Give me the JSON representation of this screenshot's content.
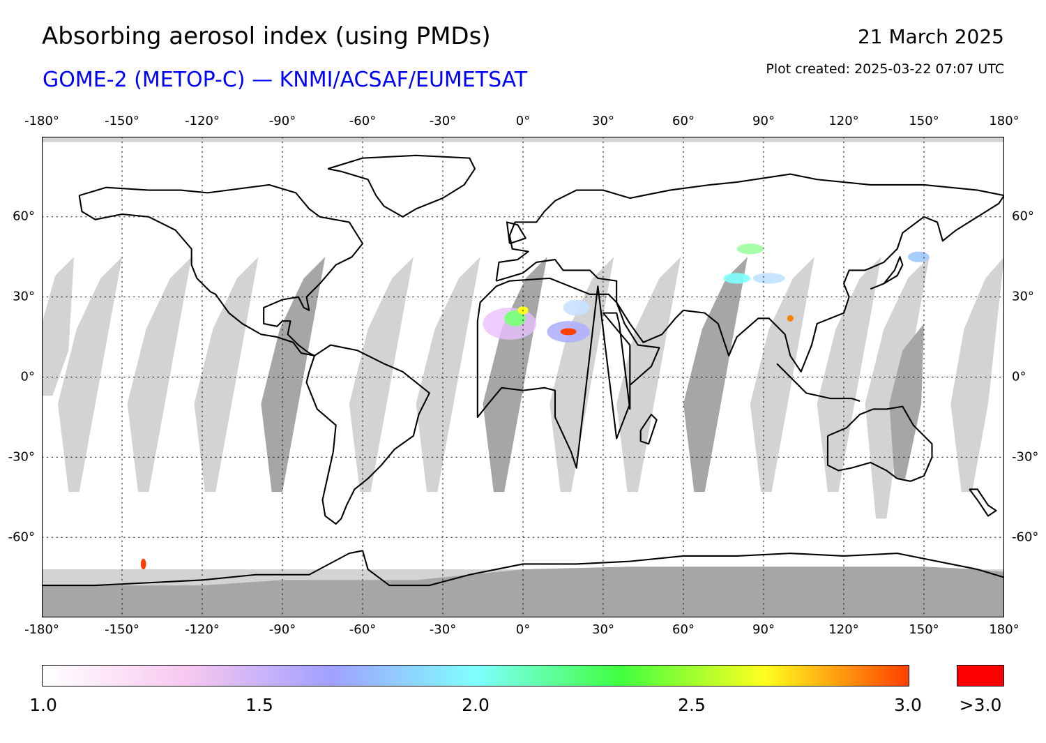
{
  "header": {
    "title": "Absorbing aerosol index (using PMDs)",
    "subtitle": "GOME-2 (METOP-C) — KNMI/ACSAF/EUMETSAT",
    "date": "21 March 2025",
    "plot_created": "Plot created: 2025-03-22 07:07 UTC"
  },
  "axes": {
    "lon_ticks": [
      "-180°",
      "-150°",
      "-120°",
      "-90°",
      "-60°",
      "-30°",
      "0°",
      "30°",
      "60°",
      "90°",
      "120°",
      "150°",
      "180°"
    ],
    "lat_ticks": [
      "60°",
      "30°",
      "0°",
      "-30°",
      "-60°"
    ],
    "lon_range": [
      -180,
      180
    ],
    "lat_range": [
      -90,
      90
    ],
    "projection": "equirectangular",
    "grid": "dotted"
  },
  "colorbar": {
    "tick_labels": [
      "1.0",
      "1.5",
      "2.0",
      "2.5",
      "3.0"
    ],
    "over_label": ">3.0",
    "range": [
      1.0,
      3.0
    ],
    "colors": [
      "#ffffff",
      "#f8c8f0",
      "#a0a0ff",
      "#80ffff",
      "#40ff40",
      "#ffff20",
      "#ff4000"
    ],
    "over_color": "#ff0000"
  },
  "map_colors": {
    "no_data_light": "#d3d3d3",
    "no_data_dark": "#a6a6a6",
    "coastline": "#000000"
  }
}
